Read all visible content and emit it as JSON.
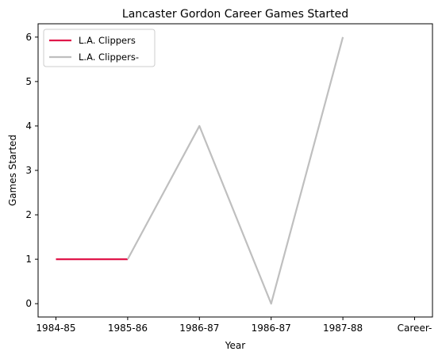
{
  "chart_data": {
    "type": "line",
    "title": "Lancaster Gordon Career Games Started",
    "xlabel": "Year",
    "ylabel": "Games Started",
    "categories": [
      "1984-85",
      "1985-86",
      "1986-87",
      "1986-87",
      "1987-88",
      "Career-"
    ],
    "ylim": [
      -0.3,
      6.3
    ],
    "yticks": [
      "0",
      "1",
      "2",
      "3",
      "4",
      "5",
      "6"
    ],
    "grid": false,
    "legend_position": "top-left",
    "series": [
      {
        "name": "L.A. Clippers",
        "color": "#e0174a",
        "points": [
          {
            "x": 0,
            "y": 1
          },
          {
            "x": 1,
            "y": 1
          }
        ]
      },
      {
        "name": "L.A. Clippers-",
        "color": "#bfbfbf",
        "points": [
          {
            "x": 1,
            "y": 1
          },
          {
            "x": 2,
            "y": 4
          },
          {
            "x": 3,
            "y": 0
          },
          {
            "x": 4,
            "y": 6
          }
        ]
      }
    ]
  }
}
